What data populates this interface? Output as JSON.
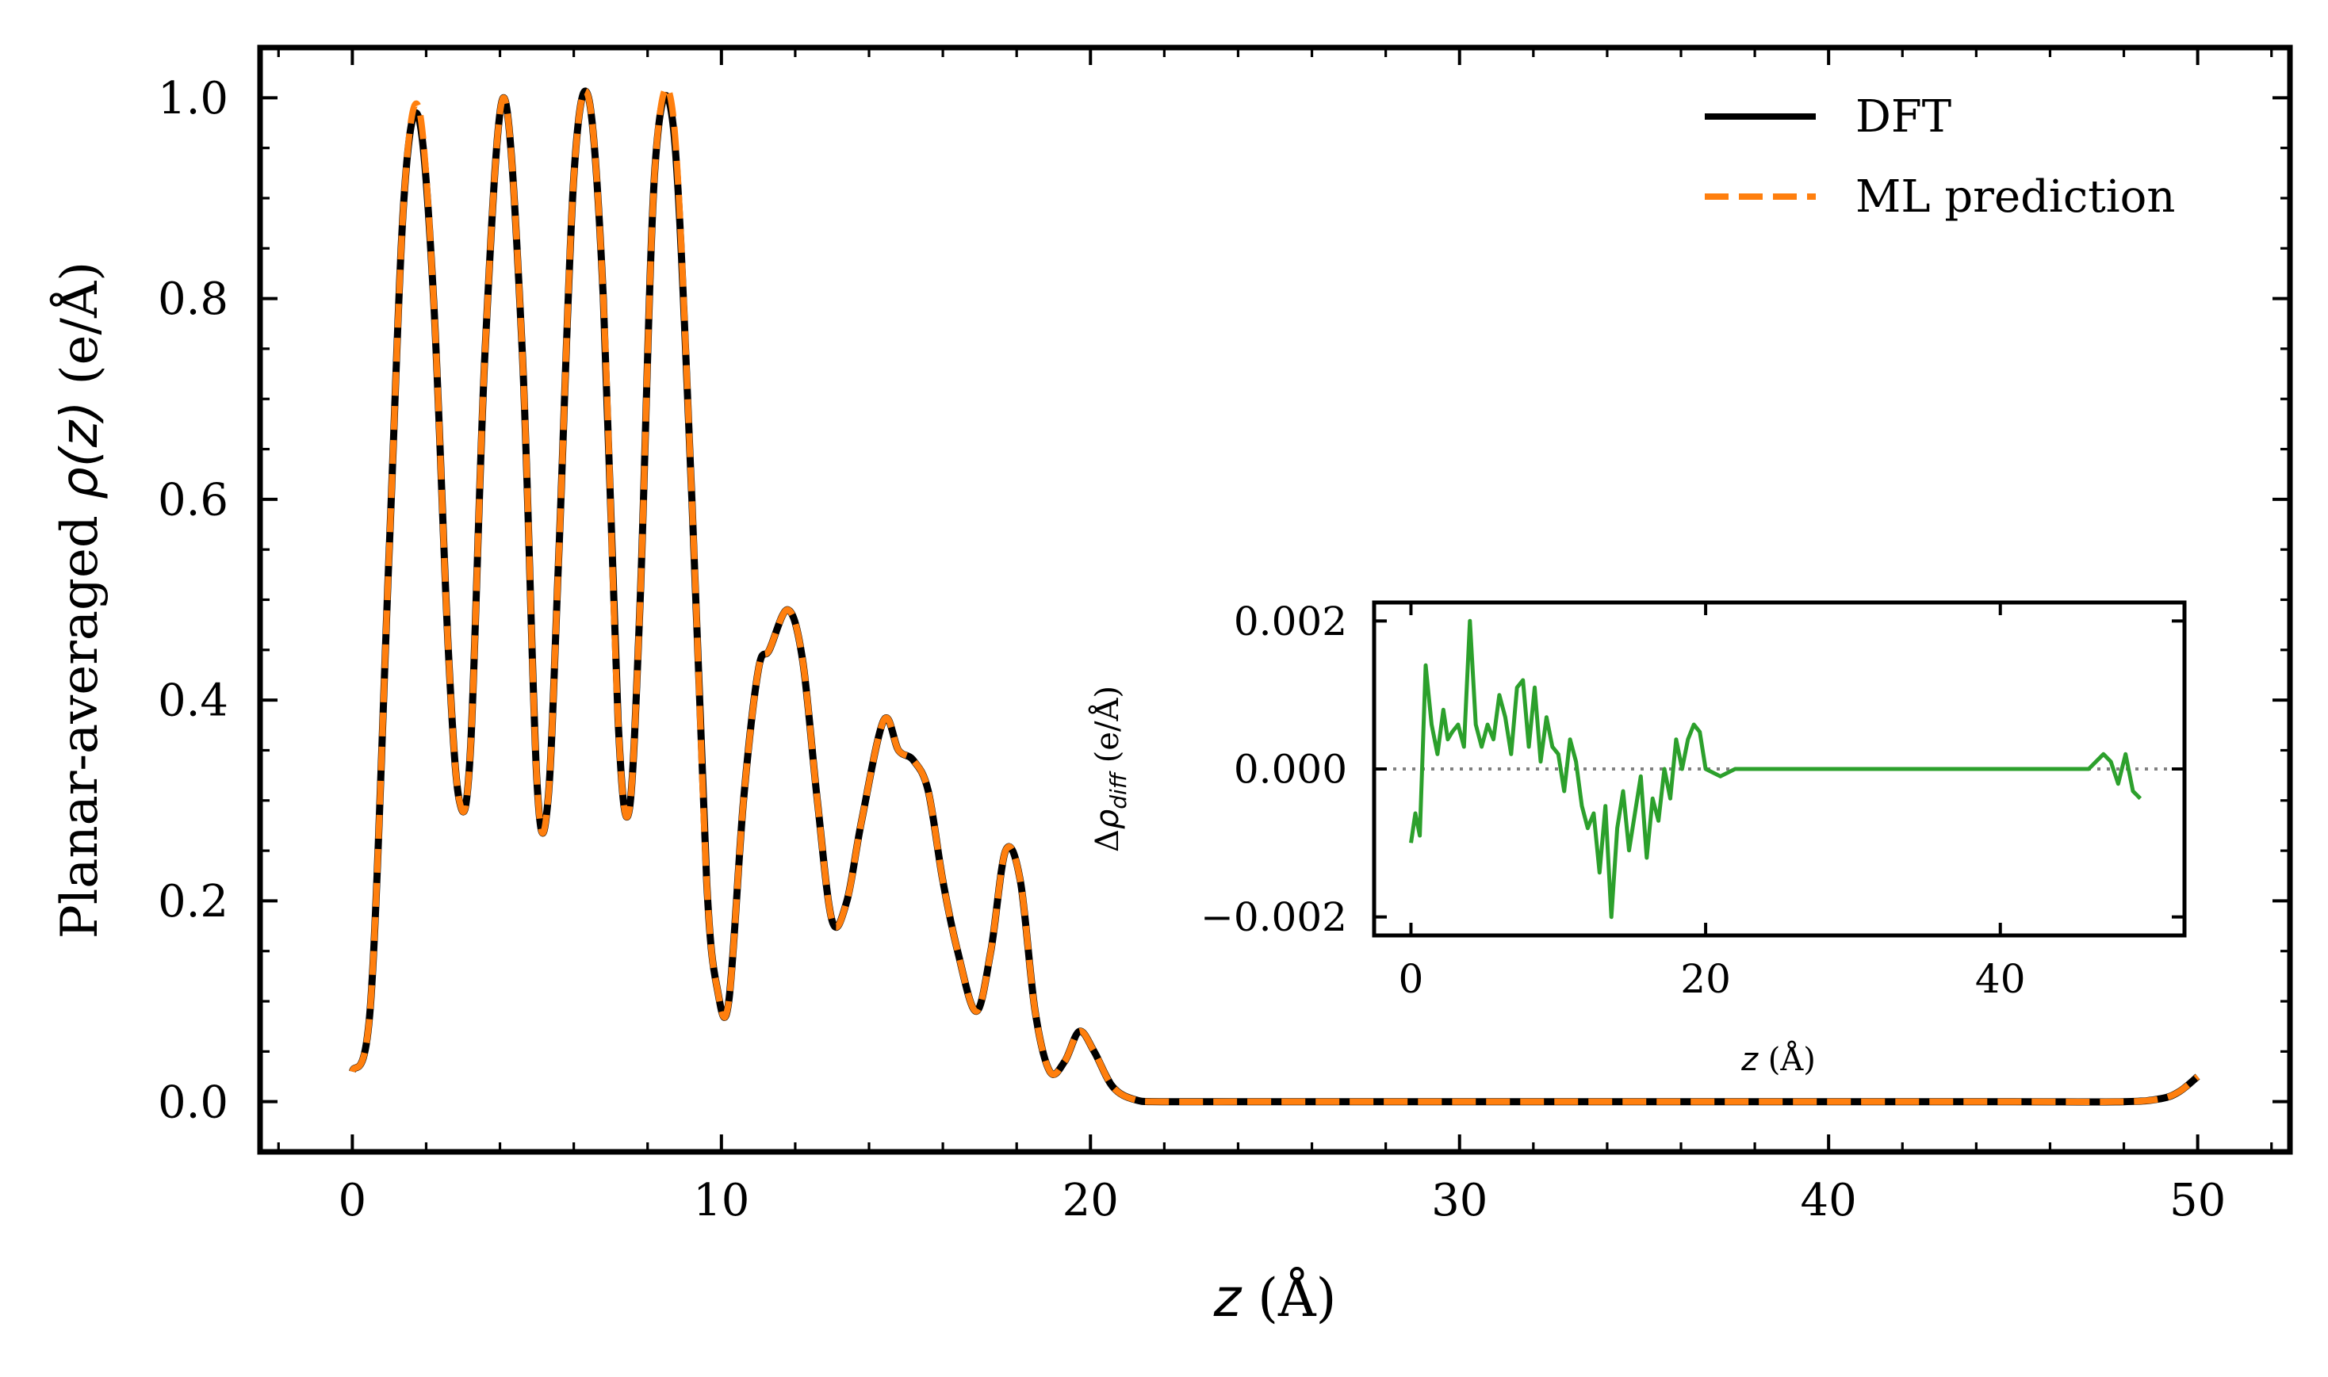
{
  "chart_data": [
    {
      "id": "main",
      "type": "line",
      "title": "",
      "xlabel_var": "z",
      "xlabel_unit": " (Å)",
      "ylabel_prefix": "Planar-averaged ",
      "ylabel_var": "ρ(z)",
      "ylabel_unit": " (e/Å)",
      "xlim": [
        -2.5,
        52.5
      ],
      "ylim": [
        -0.05,
        1.05
      ],
      "xticks": [
        0,
        10,
        20,
        30,
        40,
        50
      ],
      "xtick_labels": [
        "0",
        "10",
        "20",
        "30",
        "40",
        "50"
      ],
      "yticks": [
        0.0,
        0.2,
        0.4,
        0.6,
        0.8,
        1.0
      ],
      "ytick_labels": [
        "0.0",
        "0.2",
        "0.4",
        "0.6",
        "0.8",
        "1.0"
      ],
      "grid": false,
      "legend_position": "top-right",
      "series": [
        {
          "name": "DFT",
          "style": "solid",
          "color": "#000000",
          "x": [
            0,
            0.5,
            1.0,
            1.4,
            1.8,
            2.2,
            2.6,
            2.9,
            3.2,
            3.6,
            4.1,
            4.6,
            5.0,
            5.3,
            5.6,
            6.0,
            6.4,
            6.8,
            7.2,
            7.5,
            7.8,
            8.2,
            8.7,
            9.2,
            9.6,
            9.9,
            10.2,
            10.6,
            11.0,
            11.3,
            11.8,
            12.2,
            12.6,
            13.0,
            13.4,
            13.8,
            14.4,
            14.8,
            15.2,
            15.6,
            16.0,
            16.4,
            16.9,
            17.3,
            17.7,
            18.1,
            18.5,
            18.9,
            19.3,
            19.7,
            20.1,
            20.6,
            21.2,
            22.0,
            25,
            30,
            35,
            40,
            45,
            48,
            49,
            49.5,
            50
          ],
          "y": [
            0.03,
            0.1,
            0.55,
            0.9,
            0.98,
            0.8,
            0.45,
            0.3,
            0.35,
            0.75,
            1.0,
            0.75,
            0.32,
            0.3,
            0.55,
            0.92,
            1.0,
            0.8,
            0.38,
            0.29,
            0.5,
            0.93,
            0.97,
            0.6,
            0.22,
            0.11,
            0.1,
            0.3,
            0.43,
            0.45,
            0.49,
            0.44,
            0.3,
            0.18,
            0.2,
            0.28,
            0.38,
            0.35,
            0.34,
            0.31,
            0.22,
            0.15,
            0.09,
            0.15,
            0.25,
            0.22,
            0.09,
            0.03,
            0.04,
            0.07,
            0.05,
            0.015,
            0.002,
            0.0,
            0.0,
            0.0,
            0.0,
            0.0,
            0.0,
            0.0,
            0.003,
            0.01,
            0.025
          ]
        },
        {
          "name": "ML prediction",
          "style": "dashed",
          "color": "#ff7f0e",
          "x": [
            0,
            0.5,
            1.0,
            1.4,
            1.8,
            2.2,
            2.6,
            2.9,
            3.2,
            3.6,
            4.1,
            4.6,
            5.0,
            5.3,
            5.6,
            6.0,
            6.4,
            6.8,
            7.2,
            7.5,
            7.8,
            8.2,
            8.7,
            9.2,
            9.6,
            9.9,
            10.2,
            10.6,
            11.0,
            11.3,
            11.8,
            12.2,
            12.6,
            13.0,
            13.4,
            13.8,
            14.4,
            14.8,
            15.2,
            15.6,
            16.0,
            16.4,
            16.9,
            17.3,
            17.7,
            18.1,
            18.5,
            18.9,
            19.3,
            19.7,
            20.1,
            20.6,
            21.2,
            22.0,
            25,
            30,
            35,
            40,
            45,
            48,
            49,
            49.5,
            50
          ],
          "y": [
            0.03,
            0.1,
            0.55,
            0.9,
            0.99,
            0.8,
            0.45,
            0.3,
            0.35,
            0.75,
            1.0,
            0.75,
            0.32,
            0.3,
            0.55,
            0.92,
            1.0,
            0.8,
            0.38,
            0.29,
            0.5,
            0.93,
            0.98,
            0.6,
            0.22,
            0.11,
            0.1,
            0.3,
            0.43,
            0.45,
            0.49,
            0.44,
            0.3,
            0.18,
            0.2,
            0.28,
            0.38,
            0.35,
            0.34,
            0.31,
            0.22,
            0.15,
            0.09,
            0.15,
            0.25,
            0.22,
            0.09,
            0.03,
            0.04,
            0.07,
            0.05,
            0.015,
            0.002,
            0.0,
            0.0,
            0.0,
            0.0,
            0.0,
            0.0,
            0.0,
            0.003,
            0.01,
            0.025
          ]
        }
      ]
    },
    {
      "id": "inset",
      "type": "line",
      "title": "",
      "xlabel_var": "z",
      "xlabel_unit": " (Å)",
      "ylabel_prefix": "Δ",
      "ylabel_var": "ρ",
      "ylabel_sub": "diff",
      "ylabel_unit": " (e/Å)",
      "xlim": [
        -2.5,
        52.5
      ],
      "ylim": [
        -0.00225,
        0.00225
      ],
      "xticks": [
        0,
        20,
        40
      ],
      "xtick_labels": [
        "0",
        "20",
        "40"
      ],
      "yticks": [
        -0.002,
        0.0,
        0.002
      ],
      "ytick_labels": [
        "−0.002",
        "0.000",
        "0.002"
      ],
      "reference_line": 0.0,
      "grid": false,
      "series": [
        {
          "name": "Δρ_diff",
          "color": "#2ca02c",
          "x": [
            0,
            0.3,
            0.6,
            1.0,
            1.4,
            1.8,
            2.2,
            2.5,
            2.8,
            3.2,
            3.6,
            4.0,
            4.4,
            4.8,
            5.2,
            5.6,
            6.0,
            6.4,
            6.8,
            7.2,
            7.6,
            8.0,
            8.4,
            8.8,
            9.2,
            9.6,
            10.0,
            10.4,
            10.8,
            11.2,
            11.6,
            12.0,
            12.4,
            12.8,
            13.2,
            13.6,
            14.0,
            14.4,
            14.8,
            15.2,
            15.6,
            16.0,
            16.4,
            16.8,
            17.2,
            17.6,
            18.0,
            18.4,
            18.8,
            19.2,
            19.6,
            20.0,
            21.0,
            22.0,
            25,
            30,
            35,
            40,
            45,
            46,
            47,
            47.5,
            48,
            48.5,
            49,
            49.5
          ],
          "y": [
            -0.001,
            -0.0006,
            -0.0009,
            0.0014,
            0.0006,
            0.0002,
            0.0008,
            0.0004,
            0.0005,
            0.0006,
            0.0003,
            0.002,
            0.0006,
            0.0003,
            0.0006,
            0.0004,
            0.001,
            0.0007,
            0.0002,
            0.0011,
            0.0012,
            0.0003,
            0.0011,
            0.0001,
            0.0007,
            0.0003,
            0.0002,
            -0.0003,
            0.0004,
            0.0001,
            -0.0005,
            -0.0008,
            -0.0006,
            -0.0014,
            -0.0005,
            -0.002,
            -0.0008,
            -0.0003,
            -0.0011,
            -0.0006,
            -0.0001,
            -0.0012,
            -0.0004,
            -0.0007,
            0.0,
            -0.0004,
            0.0004,
            0.0,
            0.0004,
            0.0006,
            0.0005,
            0.0,
            -0.0001,
            0.0,
            0.0,
            0.0,
            0.0,
            0.0,
            0.0,
            0.0,
            0.0002,
            0.0001,
            -0.0002,
            0.0002,
            -0.0003,
            -0.0004
          ]
        }
      ]
    }
  ]
}
